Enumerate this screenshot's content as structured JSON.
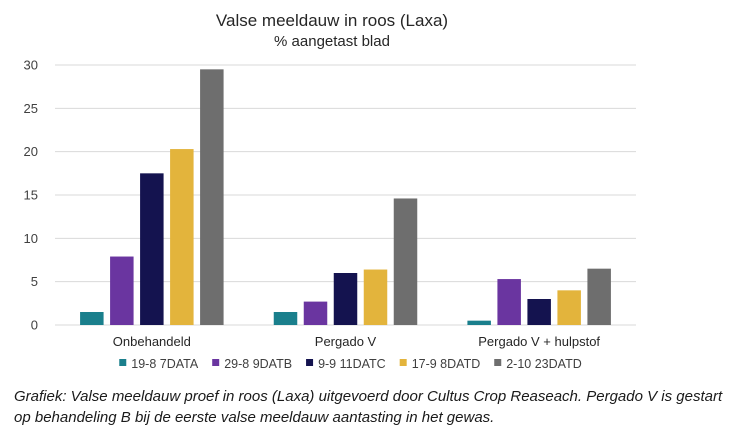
{
  "chart_data": {
    "type": "bar",
    "title": "Valse meeldauw in roos (Laxa)",
    "subtitle": "% aangetast blad",
    "xlabel": "",
    "ylabel": "",
    "ylim": [
      0,
      30
    ],
    "yticks": [
      0,
      5,
      10,
      15,
      20,
      25,
      30
    ],
    "grid": true,
    "legend_position": "bottom",
    "categories": [
      "Onbehandeld",
      "Pergado V",
      "Pergado V + hulpstof"
    ],
    "series": [
      {
        "name": "19-8 7DATA",
        "color": "#1a7f8c",
        "values": [
          1.5,
          1.5,
          0.5
        ]
      },
      {
        "name": "29-8 9DATB",
        "color": "#6a35a0",
        "values": [
          7.9,
          2.7,
          5.3
        ]
      },
      {
        "name": "9-9 11DATC",
        "color": "#14134f",
        "values": [
          17.5,
          6.0,
          3.0
        ]
      },
      {
        "name": "17-9 8DATD",
        "color": "#e3b43c",
        "values": [
          20.3,
          6.4,
          4.0
        ]
      },
      {
        "name": "2-10 23DATD",
        "color": "#6e6e6e",
        "values": [
          29.5,
          14.6,
          6.5
        ]
      }
    ]
  },
  "caption": "Grafiek: Valse meeldauw proef in roos (Laxa) uitgevoerd door Cultus Crop Reaseach. Pergado V is gestart op behandeling B bij de eerste valse meeldauw aantasting in het gewas."
}
